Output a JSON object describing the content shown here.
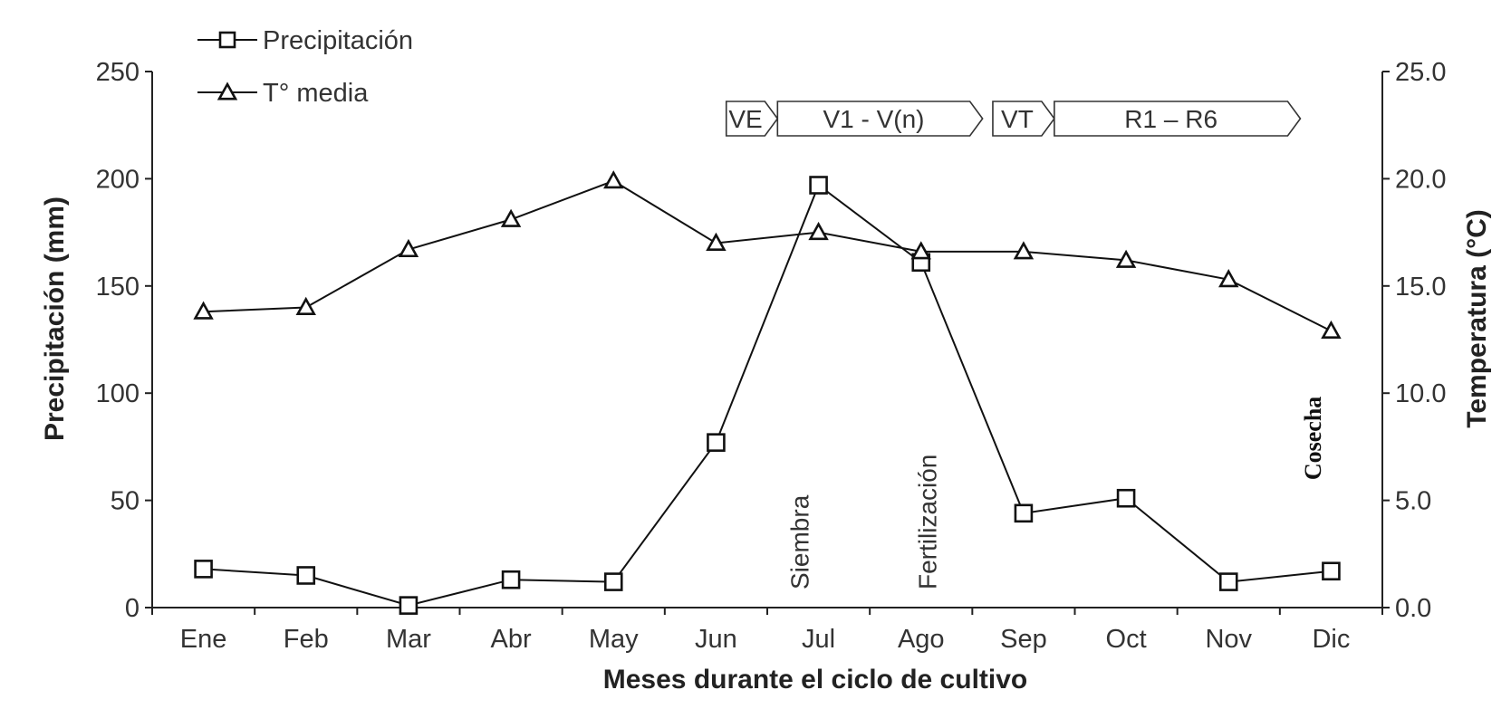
{
  "chart_data": {
    "type": "line",
    "categories": [
      "Ene",
      "Feb",
      "Mar",
      "Abr",
      "May",
      "Jun",
      "Jul",
      "Ago",
      "Sep",
      "Oct",
      "Nov",
      "Dic"
    ],
    "series": [
      {
        "name": "Precipitación",
        "axis": "left",
        "marker": "square",
        "values": [
          18,
          15,
          1,
          13,
          12,
          77,
          197,
          161,
          44,
          51,
          12,
          17
        ]
      },
      {
        "name": "T° media",
        "axis": "right",
        "marker": "triangle",
        "values": [
          13.8,
          14.0,
          16.7,
          18.1,
          19.9,
          17.0,
          17.5,
          16.6,
          16.6,
          16.2,
          15.3,
          12.9
        ]
      }
    ],
    "xlabel": "Meses durante el ciclo de cultivo",
    "ylabel": "Precipitación (mm)",
    "y2label": "Temperatura (°C)",
    "ylim": [
      0,
      250
    ],
    "y2lim": [
      0,
      25
    ],
    "yticks": [
      "0",
      "50",
      "100",
      "150",
      "200",
      "250"
    ],
    "y2ticks": [
      "0.0",
      "5.0",
      "10.0",
      "15.0",
      "20.0",
      "25.0"
    ],
    "grid": false,
    "legend_position": "top-left",
    "phases": [
      {
        "label": "VE",
        "start_month": 5.6,
        "end_month": 6.1
      },
      {
        "label": "V1 - V(n)",
        "start_month": 6.1,
        "end_month": 8.1
      },
      {
        "label": "VT",
        "start_month": 8.2,
        "end_month": 8.8
      },
      {
        "label": "R1 – R6",
        "start_month": 8.8,
        "end_month": 11.2
      }
    ],
    "annotations": [
      {
        "text": "Siembra",
        "month": 6.4,
        "style": "normal"
      },
      {
        "text": "Fertilización",
        "month": 7.65,
        "style": "normal"
      },
      {
        "text": "Cosecha",
        "month": 11.4,
        "style": "serif"
      }
    ]
  }
}
